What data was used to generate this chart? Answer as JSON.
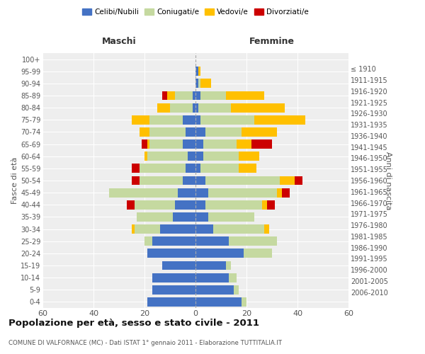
{
  "age_groups": [
    "0-4",
    "5-9",
    "10-14",
    "15-19",
    "20-24",
    "25-29",
    "30-34",
    "35-39",
    "40-44",
    "45-49",
    "50-54",
    "55-59",
    "60-64",
    "65-69",
    "70-74",
    "75-79",
    "80-84",
    "85-89",
    "90-94",
    "95-99",
    "100+"
  ],
  "birth_years": [
    "2006-2010",
    "2001-2005",
    "1996-2000",
    "1991-1995",
    "1986-1990",
    "1981-1985",
    "1976-1980",
    "1971-1975",
    "1966-1970",
    "1961-1965",
    "1956-1960",
    "1951-1955",
    "1946-1950",
    "1941-1945",
    "1936-1940",
    "1931-1935",
    "1926-1930",
    "1921-1925",
    "1916-1920",
    "1911-1915",
    "≤ 1910"
  ],
  "males": {
    "celibi": [
      19,
      17,
      17,
      13,
      19,
      17,
      14,
      9,
      8,
      7,
      5,
      4,
      3,
      5,
      4,
      5,
      1,
      1,
      0,
      0,
      0
    ],
    "coniugati": [
      0,
      0,
      0,
      0,
      0,
      3,
      10,
      14,
      16,
      27,
      17,
      18,
      16,
      13,
      14,
      13,
      9,
      7,
      0,
      0,
      0
    ],
    "vedovi": [
      0,
      0,
      0,
      0,
      0,
      0,
      1,
      0,
      0,
      0,
      0,
      0,
      1,
      1,
      4,
      7,
      5,
      3,
      0,
      0,
      0
    ],
    "divorziati": [
      0,
      0,
      0,
      0,
      0,
      0,
      0,
      0,
      3,
      0,
      3,
      3,
      0,
      2,
      0,
      0,
      0,
      2,
      0,
      0,
      0
    ]
  },
  "females": {
    "nubili": [
      18,
      15,
      13,
      12,
      19,
      13,
      7,
      5,
      4,
      5,
      4,
      2,
      3,
      3,
      4,
      2,
      1,
      2,
      1,
      1,
      0
    ],
    "coniugate": [
      2,
      2,
      3,
      2,
      11,
      19,
      20,
      18,
      22,
      27,
      29,
      15,
      14,
      13,
      14,
      21,
      13,
      10,
      1,
      0,
      0
    ],
    "vedove": [
      0,
      0,
      0,
      0,
      0,
      0,
      2,
      0,
      2,
      2,
      6,
      7,
      8,
      6,
      14,
      20,
      21,
      15,
      4,
      1,
      0
    ],
    "divorziate": [
      0,
      0,
      0,
      0,
      0,
      0,
      0,
      0,
      3,
      3,
      3,
      0,
      0,
      8,
      0,
      0,
      0,
      0,
      0,
      0,
      0
    ]
  },
  "colors": {
    "celibi": "#4472C4",
    "coniugati": "#c5d9a0",
    "vedovi": "#ffc000",
    "divorziati": "#cc0000"
  },
  "title": "Popolazione per età, sesso e stato civile - 2011",
  "subtitle": "COMUNE DI VALFORNACE (MC) - Dati ISTAT 1° gennaio 2011 - Elaborazione TUTTITALIA.IT",
  "xlabel_left": "Maschi",
  "xlabel_right": "Femmine",
  "ylabel_left": "Fasce di età",
  "ylabel_right": "Anni di nascita",
  "xlim": 60,
  "legend_labels": [
    "Celibi/Nubili",
    "Coniugati/e",
    "Vedovi/e",
    "Divorziati/e"
  ],
  "bg_color": "#ffffff",
  "plot_bg_color": "#eeeeee",
  "grid_color": "#ffffff"
}
